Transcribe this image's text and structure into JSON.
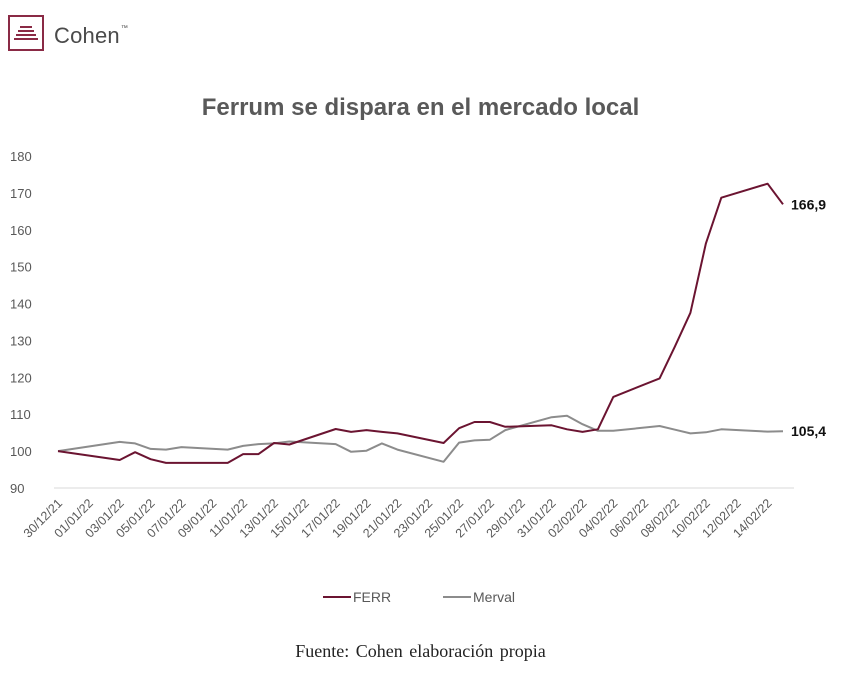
{
  "brand": {
    "name": "Cohen",
    "tm": "™"
  },
  "colors": {
    "ferr": "#6b1431",
    "merval": "#8c8c8c",
    "axis": "#d9d9d9",
    "brand": "#8a2a45"
  },
  "icons": {
    "logo": "cohen-logo-icon"
  },
  "source": "Fuente: Cohen elaboración propia",
  "chart_data": {
    "type": "line",
    "title": "Ferrum se dispara en el mercado local",
    "xlabel": "",
    "ylabel": "",
    "ylim": [
      90,
      180
    ],
    "yticks": [
      "180",
      "170",
      "160",
      "150",
      "140",
      "130",
      "120",
      "110",
      "100",
      "90"
    ],
    "grid": false,
    "legend_position": "bottom",
    "x_tick_labels": [
      "30/12/21",
      "01/01/22",
      "03/01/22",
      "05/01/22",
      "07/01/22",
      "09/01/22",
      "11/01/22",
      "13/01/22",
      "15/01/22",
      "17/01/22",
      "19/01/22",
      "21/01/22",
      "23/01/22",
      "25/01/22",
      "27/01/22",
      "29/01/22",
      "31/01/22",
      "02/02/22",
      "04/02/22",
      "06/02/22",
      "08/02/22",
      "10/02/22",
      "12/02/22",
      "14/02/22"
    ],
    "series": [
      {
        "name": "FERR",
        "end_label": "166,9",
        "points": [
          [
            "30/12/21",
            100
          ],
          [
            "03/01/22",
            97.6
          ],
          [
            "04/01/22",
            99.7
          ],
          [
            "05/01/22",
            97.8
          ],
          [
            "06/01/22",
            96.8
          ],
          [
            "07/01/22",
            96.8
          ],
          [
            "10/01/22",
            96.8
          ],
          [
            "11/01/22",
            99.2
          ],
          [
            "12/01/22",
            99.2
          ],
          [
            "13/01/22",
            102.2
          ],
          [
            "14/01/22",
            101.8
          ],
          [
            "17/01/22",
            106.0
          ],
          [
            "18/01/22",
            105.2
          ],
          [
            "19/01/22",
            105.7
          ],
          [
            "20/01/22",
            105.2
          ],
          [
            "21/01/22",
            104.8
          ],
          [
            "24/01/22",
            102.2
          ],
          [
            "25/01/22",
            106.2
          ],
          [
            "26/01/22",
            107.9
          ],
          [
            "27/01/22",
            107.9
          ],
          [
            "28/01/22",
            106.6
          ],
          [
            "31/01/22",
            107.0
          ],
          [
            "01/02/22",
            105.9
          ],
          [
            "02/02/22",
            105.2
          ],
          [
            "03/02/22",
            105.9
          ],
          [
            "04/02/22",
            114.7
          ],
          [
            "07/02/22",
            119.7
          ],
          [
            "08/02/22",
            128.4
          ],
          [
            "09/02/22",
            137.5
          ],
          [
            "10/02/22",
            156.3
          ],
          [
            "11/02/22",
            168.7
          ],
          [
            "14/02/22",
            172.5
          ],
          [
            "15/02/22",
            166.9
          ]
        ]
      },
      {
        "name": "Merval",
        "end_label": "105,4",
        "points": [
          [
            "30/12/21",
            100
          ],
          [
            "03/01/22",
            102.5
          ],
          [
            "04/01/22",
            102.1
          ],
          [
            "05/01/22",
            100.6
          ],
          [
            "06/01/22",
            100.4
          ],
          [
            "07/01/22",
            101.1
          ],
          [
            "10/01/22",
            100.4
          ],
          [
            "11/01/22",
            101.4
          ],
          [
            "12/01/22",
            101.9
          ],
          [
            "13/01/22",
            102.1
          ],
          [
            "14/01/22",
            102.6
          ],
          [
            "17/01/22",
            101.9
          ],
          [
            "18/01/22",
            99.8
          ],
          [
            "19/01/22",
            100.1
          ],
          [
            "20/01/22",
            102.1
          ],
          [
            "21/01/22",
            100.4
          ],
          [
            "24/01/22",
            97.1
          ],
          [
            "25/01/22",
            102.3
          ],
          [
            "26/01/22",
            102.9
          ],
          [
            "27/01/22",
            103.1
          ],
          [
            "28/01/22",
            105.7
          ],
          [
            "31/01/22",
            109.2
          ],
          [
            "01/02/22",
            109.6
          ],
          [
            "02/02/22",
            107.3
          ],
          [
            "03/02/22",
            105.5
          ],
          [
            "04/02/22",
            105.5
          ],
          [
            "07/02/22",
            106.8
          ],
          [
            "08/02/22",
            105.8
          ],
          [
            "09/02/22",
            104.8
          ],
          [
            "10/02/22",
            105.1
          ],
          [
            "11/02/22",
            105.9
          ],
          [
            "14/02/22",
            105.3
          ],
          [
            "15/02/22",
            105.4
          ]
        ]
      }
    ]
  }
}
